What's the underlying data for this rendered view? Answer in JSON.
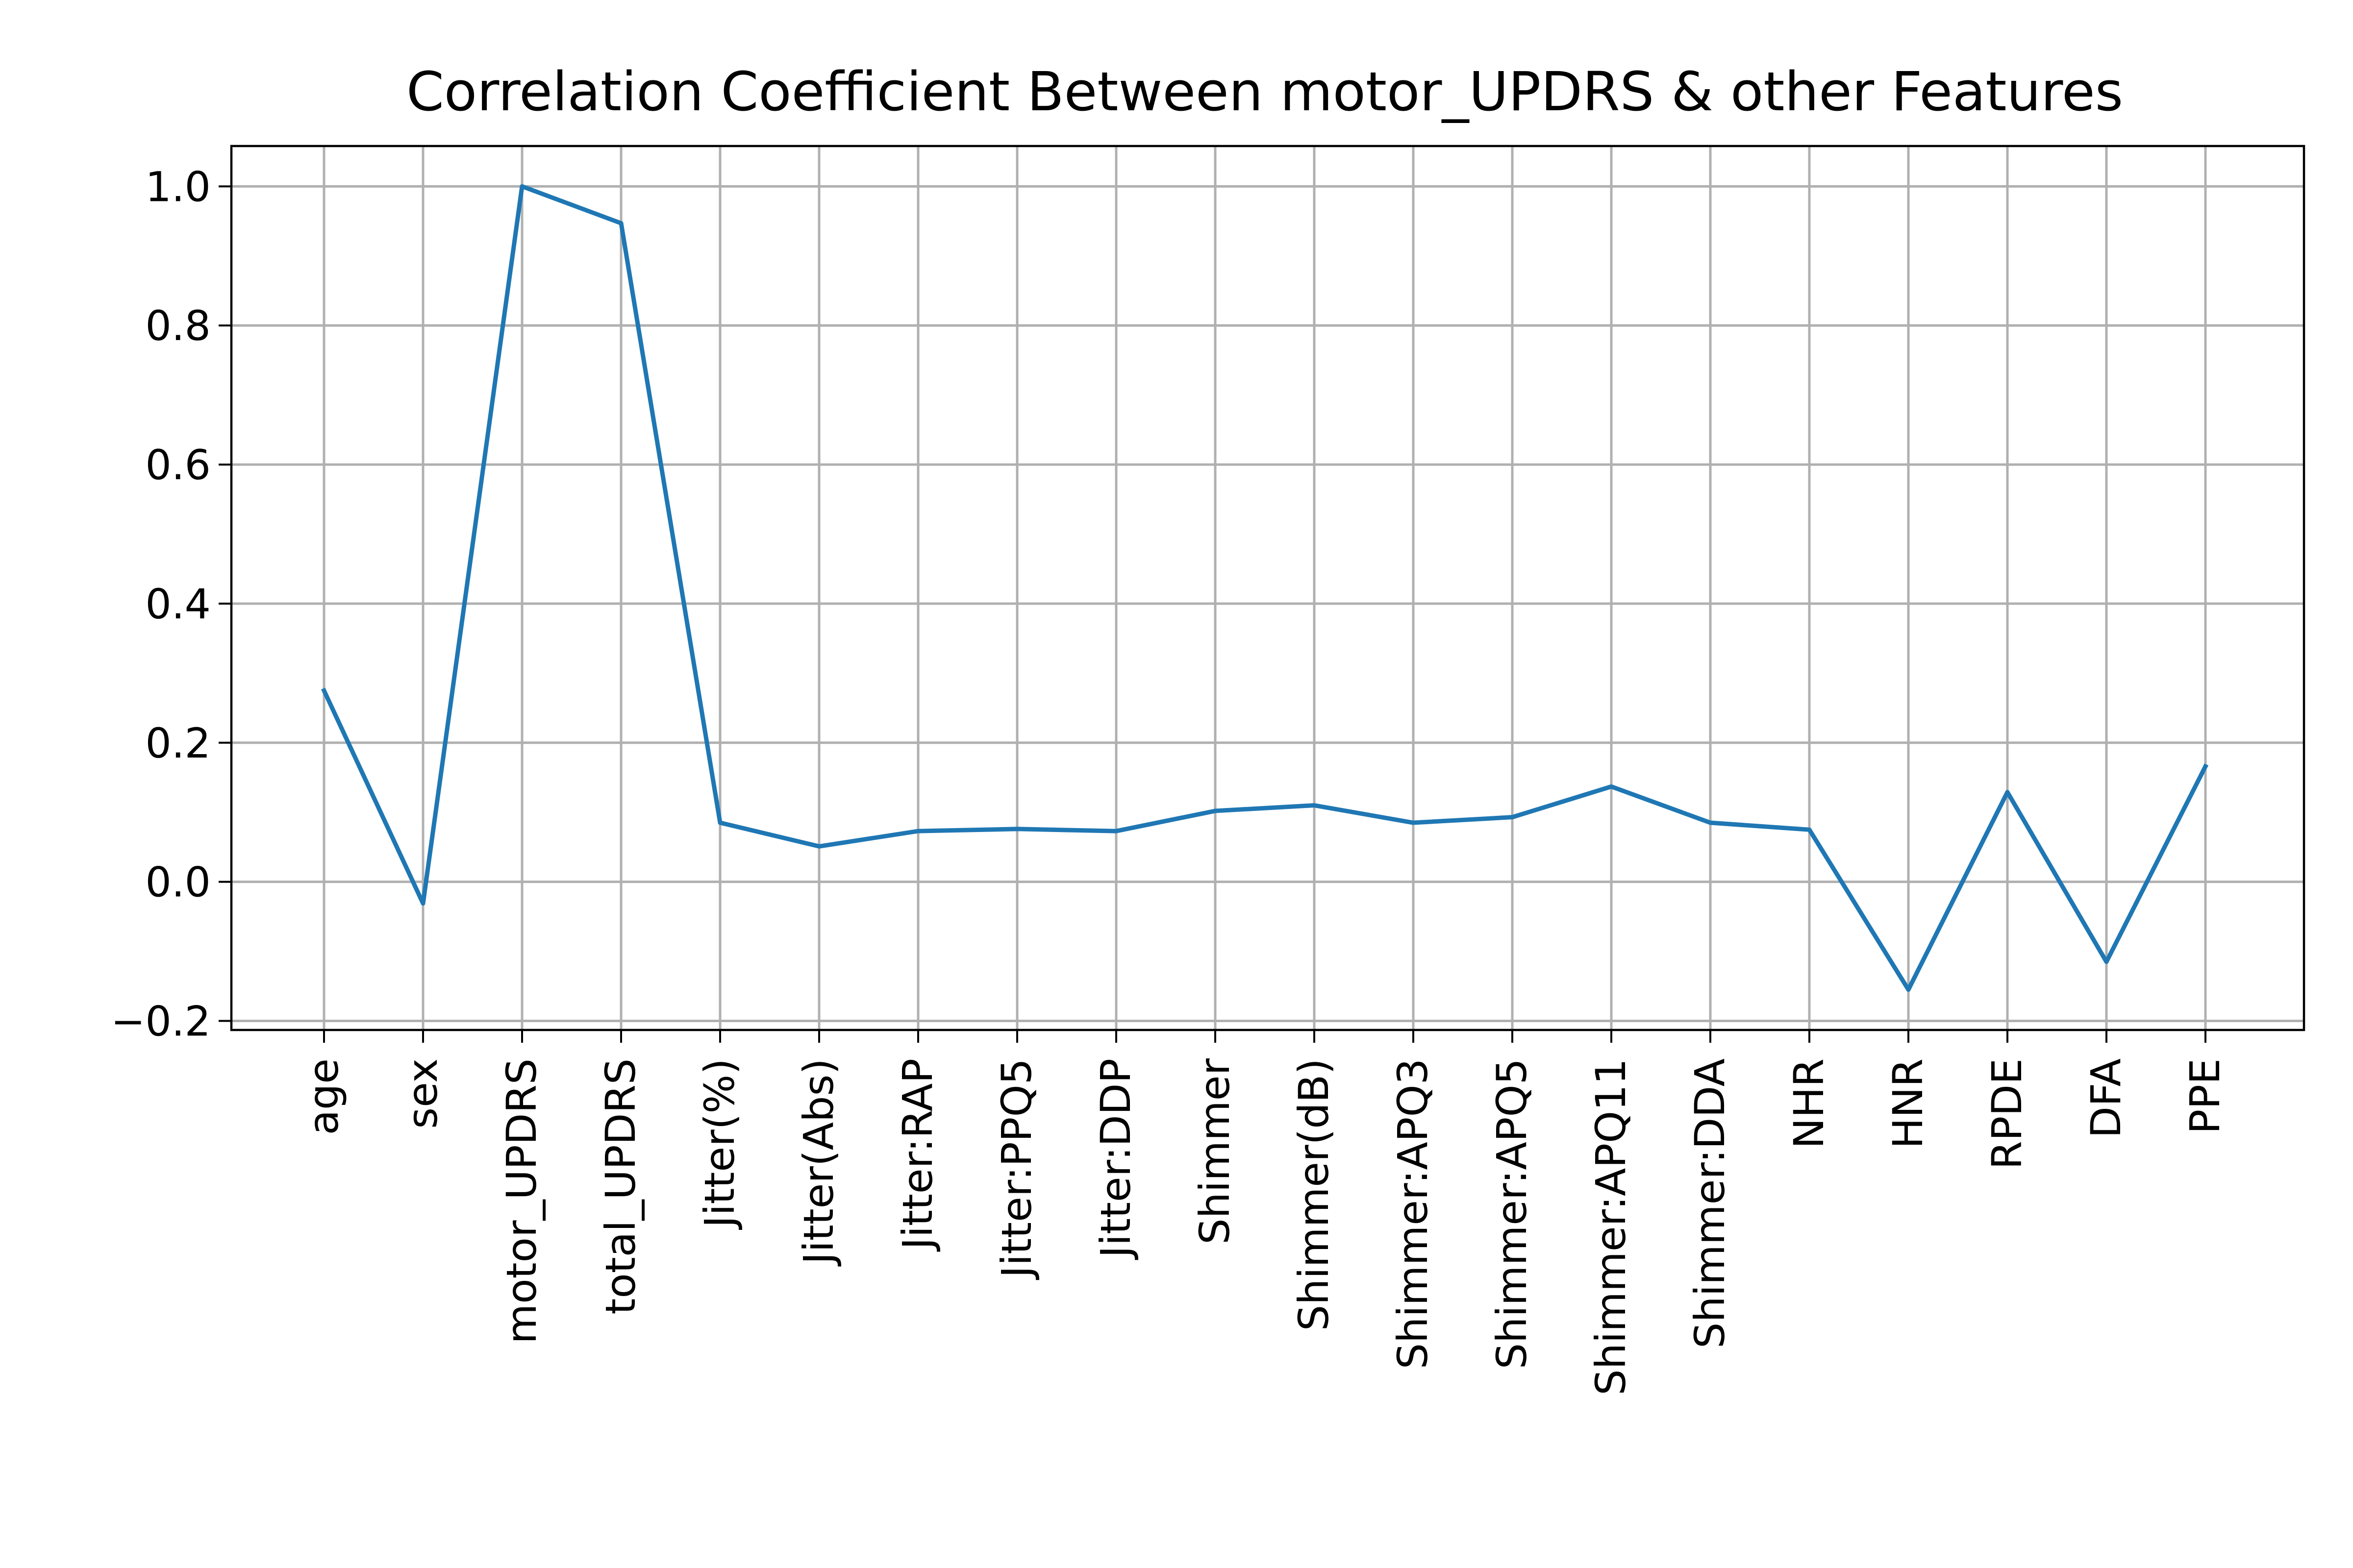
{
  "chart_data": {
    "type": "line",
    "title": "Correlation Coefficient Between motor_UPDRS & other Features",
    "xlabel": "",
    "ylabel": "",
    "categories": [
      "age",
      "sex",
      "motor_UPDRS",
      "total_UPDRS",
      "Jitter(%)",
      "Jitter(Abs)",
      "Jitter:RAP",
      "Jitter:PPQ5",
      "Jitter:DDP",
      "Shimmer",
      "Shimmer(dB)",
      "Shimmer:APQ3",
      "Shimmer:APQ5",
      "Shimmer:APQ11",
      "Shimmer:DDA",
      "NHR",
      "HNR",
      "RPDE",
      "DFA",
      "PPE"
    ],
    "series": [
      {
        "color": "#1f77b4",
        "values": [
          0.275,
          -0.031,
          1.0,
          0.947,
          0.085,
          0.051,
          0.073,
          0.076,
          0.073,
          0.102,
          0.11,
          0.085,
          0.093,
          0.137,
          0.085,
          0.075,
          -0.155,
          0.129,
          -0.115,
          0.166
        ]
      }
    ],
    "yticks": [
      "1.0",
      "0.8",
      "0.6",
      "0.4",
      "0.2",
      "0.0",
      "−0.2"
    ],
    "ylim": [
      -0.213,
      1.058
    ],
    "grid": true,
    "legend": "none"
  }
}
